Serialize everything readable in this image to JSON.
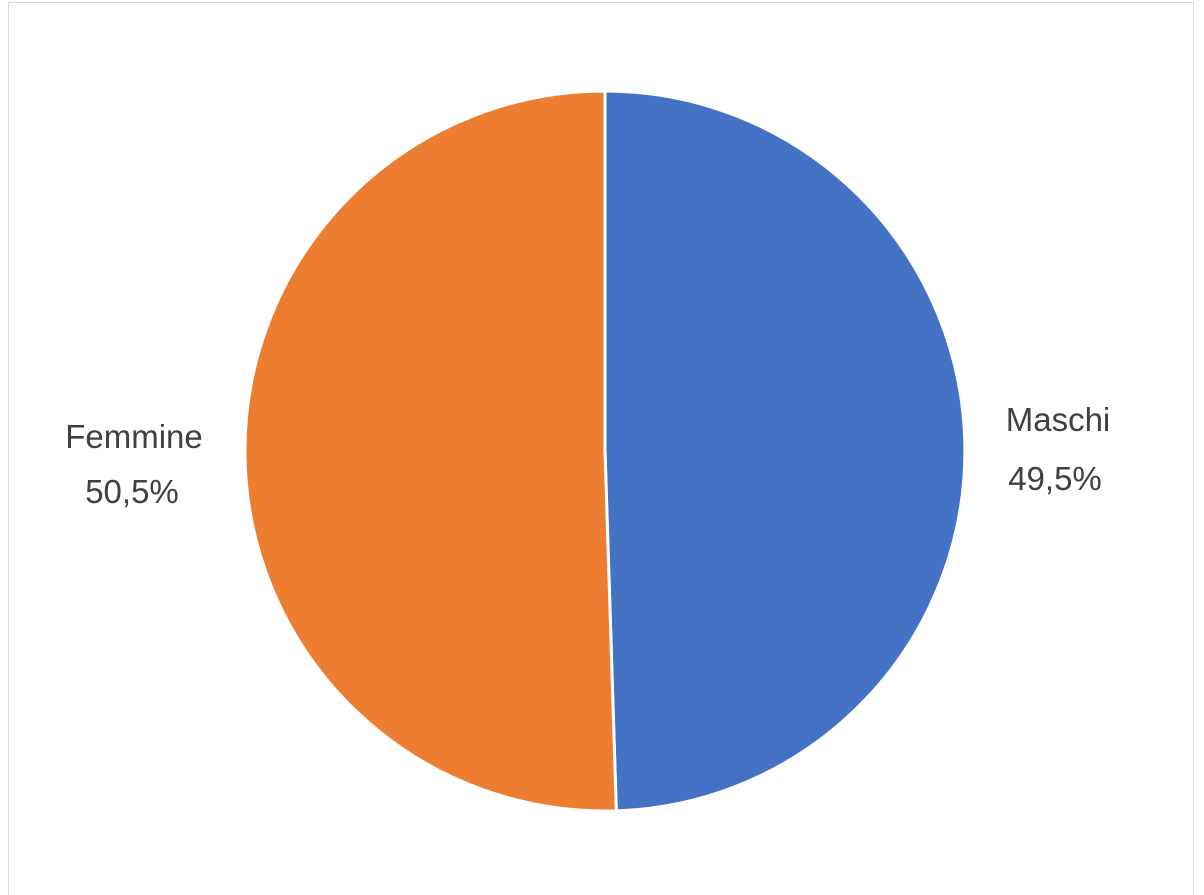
{
  "chart_data": {
    "type": "pie",
    "title": "",
    "slices": [
      {
        "label": "Maschi",
        "value": 49.5,
        "display": "49,5%",
        "color": "#4472C4"
      },
      {
        "label": "Femmine",
        "value": 50.5,
        "display": "50,5%",
        "color": "#ED7D31"
      }
    ],
    "start_angle_deg": 0,
    "direction": "clockwise",
    "legend": "none",
    "slice_border_color": "#FFFFFF"
  }
}
